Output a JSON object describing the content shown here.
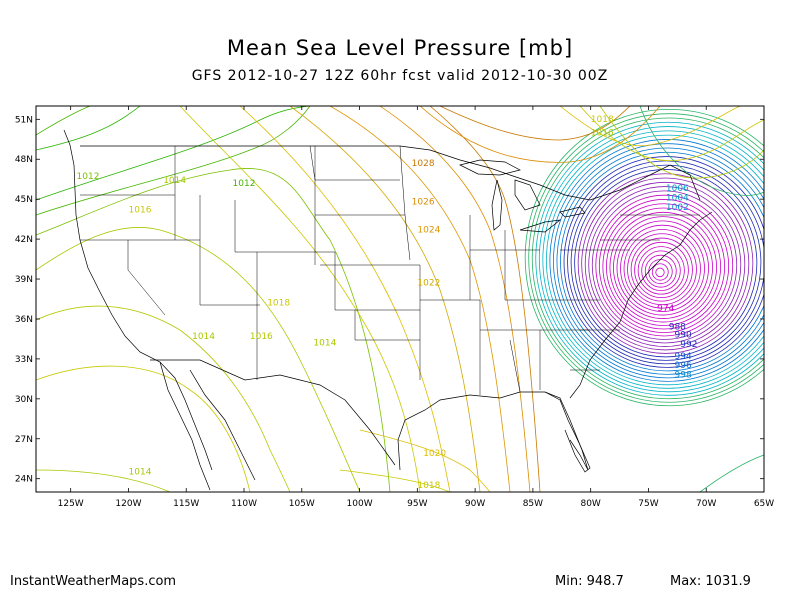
{
  "title": "Mean Sea Level Pressure [mb]",
  "subtitle": "GFS 2012-10-27 12Z 60hr fcst valid 2012-10-30 00Z",
  "source": "InstantWeatherMaps.com",
  "min_label": "Min:",
  "min_value": "948.7",
  "max_label": "Max:",
  "max_value": "1031.9",
  "map": {
    "lon_range": [
      -128,
      -65
    ],
    "lat_range": [
      23,
      52
    ],
    "lat_ticks": [
      "51N",
      "48N",
      "45N",
      "42N",
      "39N",
      "36N",
      "33N",
      "30N",
      "27N",
      "24N"
    ],
    "lat_values": [
      51,
      48,
      45,
      42,
      39,
      36,
      33,
      30,
      27,
      24
    ],
    "lon_ticks": [
      "125W",
      "120W",
      "115W",
      "110W",
      "105W",
      "100W",
      "95W",
      "90W",
      "85W",
      "80W",
      "75W",
      "70W",
      "65W"
    ],
    "lon_values": [
      -125,
      -120,
      -115,
      -110,
      -105,
      -100,
      -95,
      -90,
      -85,
      -80,
      -75,
      -70,
      -65
    ],
    "low_center": {
      "lon": -74,
      "lat": 39.5
    },
    "contour_labels": [
      {
        "text": "1012",
        "lon": -123.5,
        "lat": 46.5,
        "color": "#7ac000"
      },
      {
        "text": "1014",
        "lon": -116,
        "lat": 46.2,
        "color": "#a8c800"
      },
      {
        "text": "1012",
        "lon": -110,
        "lat": 46,
        "color": "#46b400"
      },
      {
        "text": "1016",
        "lon": -119,
        "lat": 44,
        "color": "#c8c800"
      },
      {
        "text": "1018",
        "lon": -107,
        "lat": 37,
        "color": "#c8c800"
      },
      {
        "text": "1016",
        "lon": -108.5,
        "lat": 34.5,
        "color": "#b4c800"
      },
      {
        "text": "1014",
        "lon": -113.5,
        "lat": 34.5,
        "color": "#a8c800"
      },
      {
        "text": "1014",
        "lon": -103,
        "lat": 34,
        "color": "#a8c800"
      },
      {
        "text": "1014",
        "lon": -119,
        "lat": 24.3,
        "color": "#a8c800"
      },
      {
        "text": "1020",
        "lon": -93.5,
        "lat": 25.7,
        "color": "#dcbe00"
      },
      {
        "text": "1018",
        "lon": -94,
        "lat": 23.3,
        "color": "#c8c800"
      },
      {
        "text": "1022",
        "lon": -94,
        "lat": 38.5,
        "color": "#d2a800"
      },
      {
        "text": "1024",
        "lon": -94,
        "lat": 42.5,
        "color": "#dc9600"
      },
      {
        "text": "1026",
        "lon": -94.5,
        "lat": 44.6,
        "color": "#dc8c00"
      },
      {
        "text": "1028",
        "lon": -94.5,
        "lat": 47.5,
        "color": "#c87800"
      },
      {
        "text": "1020",
        "lon": -79,
        "lat": 52,
        "color": "#dcbe00"
      },
      {
        "text": "1018",
        "lon": -79,
        "lat": 50.8,
        "color": "#c8c800"
      },
      {
        "text": "1016",
        "lon": -79,
        "lat": 49.8,
        "color": "#b4c800"
      },
      {
        "text": "1006",
        "lon": -72.5,
        "lat": 45.6,
        "color": "#00a0c8"
      },
      {
        "text": "1004",
        "lon": -72.5,
        "lat": 44.9,
        "color": "#0096c8"
      },
      {
        "text": "1002",
        "lon": -72.5,
        "lat": 44.2,
        "color": "#008cd0"
      },
      {
        "text": "974",
        "lon": -73.5,
        "lat": 36.6,
        "color": "#c800c8"
      },
      {
        "text": "988",
        "lon": -72.5,
        "lat": 35.2,
        "color": "#2828b4"
      },
      {
        "text": "990",
        "lon": -72,
        "lat": 34.6,
        "color": "#1e28b4"
      },
      {
        "text": "992",
        "lon": -71.5,
        "lat": 33.9,
        "color": "#1432c8"
      },
      {
        "text": "994",
        "lon": -72,
        "lat": 33,
        "color": "#0050d2"
      },
      {
        "text": "996",
        "lon": -72,
        "lat": 32.3,
        "color": "#0070d2"
      },
      {
        "text": "998",
        "lon": -72,
        "lat": 31.6,
        "color": "#0088d2"
      }
    ]
  },
  "colors": {
    "border": "#000000",
    "low_core": "#c800c8",
    "blue": "#1e28b4",
    "cyan": "#00b4c8",
    "green": "#28b400",
    "yellow": "#c8c800",
    "orange": "#c87800"
  }
}
